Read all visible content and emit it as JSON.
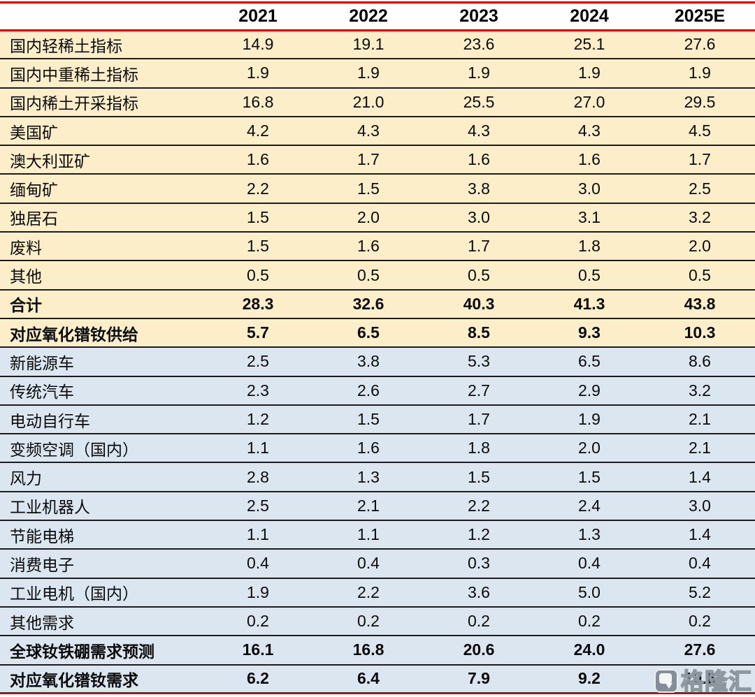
{
  "colors": {
    "accent_red": "#d90000",
    "supply_bg": "#fceec9",
    "demand_bg": "#dce6f1",
    "separator": "#1c1c1c"
  },
  "table": {
    "corner_label": "",
    "year_headers": [
      "2021",
      "2022",
      "2023",
      "2024",
      "2025E"
    ],
    "supply_rows": [
      {
        "label": "国内轻稀土指标",
        "values": [
          "14.9",
          "19.1",
          "23.6",
          "25.1",
          "27.6"
        ],
        "bold": false
      },
      {
        "label": "国内中重稀土指标",
        "values": [
          "1.9",
          "1.9",
          "1.9",
          "1.9",
          "1.9"
        ],
        "bold": false
      },
      {
        "label": "国内稀土开采指标",
        "values": [
          "16.8",
          "21.0",
          "25.5",
          "27.0",
          "29.5"
        ],
        "bold": false
      },
      {
        "label": "美国矿",
        "values": [
          "4.2",
          "4.3",
          "4.3",
          "4.3",
          "4.5"
        ],
        "bold": false
      },
      {
        "label": "澳大利亚矿",
        "values": [
          "1.6",
          "1.7",
          "1.6",
          "1.6",
          "1.7"
        ],
        "bold": false
      },
      {
        "label": "缅甸矿",
        "values": [
          "2.2",
          "1.5",
          "3.8",
          "3.0",
          "2.5"
        ],
        "bold": false
      },
      {
        "label": "独居石",
        "values": [
          "1.5",
          "2.0",
          "3.0",
          "3.1",
          "3.2"
        ],
        "bold": false
      },
      {
        "label": "废料",
        "values": [
          "1.5",
          "1.6",
          "1.7",
          "1.8",
          "2.0"
        ],
        "bold": false
      },
      {
        "label": "其他",
        "values": [
          "0.5",
          "0.5",
          "0.5",
          "0.5",
          "0.5"
        ],
        "bold": false
      },
      {
        "label": "合计",
        "values": [
          "28.3",
          "32.6",
          "40.3",
          "41.3",
          "43.8"
        ],
        "bold": true
      },
      {
        "label": "对应氧化镨钕供给",
        "values": [
          "5.7",
          "6.5",
          "8.5",
          "9.3",
          "10.3"
        ],
        "bold": true
      }
    ],
    "demand_rows": [
      {
        "label": "新能源车",
        "values": [
          "2.5",
          "3.8",
          "5.3",
          "6.5",
          "8.6"
        ],
        "bold": false
      },
      {
        "label": "传统汽车",
        "values": [
          "2.3",
          "2.6",
          "2.7",
          "2.9",
          "3.2"
        ],
        "bold": false
      },
      {
        "label": "电动自行车",
        "values": [
          "1.2",
          "1.5",
          "1.7",
          "1.9",
          "2.1"
        ],
        "bold": false
      },
      {
        "label": "变频空调（国内）",
        "values": [
          "1.1",
          "1.6",
          "1.8",
          "2.0",
          "2.1"
        ],
        "bold": false
      },
      {
        "label": "风力",
        "values": [
          "2.8",
          "1.3",
          "1.5",
          "1.5",
          "1.4"
        ],
        "bold": false
      },
      {
        "label": "工业机器人",
        "values": [
          "2.5",
          "2.1",
          "2.2",
          "2.4",
          "3.0"
        ],
        "bold": false
      },
      {
        "label": "节能电梯",
        "values": [
          "1.1",
          "1.1",
          "1.2",
          "1.3",
          "1.4"
        ],
        "bold": false
      },
      {
        "label": "消费电子",
        "values": [
          "0.4",
          "0.4",
          "0.3",
          "0.4",
          "0.4"
        ],
        "bold": false
      },
      {
        "label": "工业电机（国内）",
        "values": [
          "1.9",
          "2.2",
          "3.6",
          "5.0",
          "5.2"
        ],
        "bold": false
      },
      {
        "label": "其他需求",
        "values": [
          "0.2",
          "0.2",
          "0.2",
          "0.2",
          "0.2"
        ],
        "bold": false
      },
      {
        "label": "全球钕铁硼需求预测",
        "values": [
          "16.1",
          "16.8",
          "20.6",
          "24.0",
          "27.6"
        ],
        "bold": true
      },
      {
        "label": "对应氧化镨钕需求",
        "values": [
          "6.2",
          "6.4",
          "7.9",
          "9.2",
          "10.6"
        ],
        "bold": true
      }
    ]
  },
  "watermark": {
    "brand": "格隆汇",
    "logo": "gelonghui-logo"
  }
}
